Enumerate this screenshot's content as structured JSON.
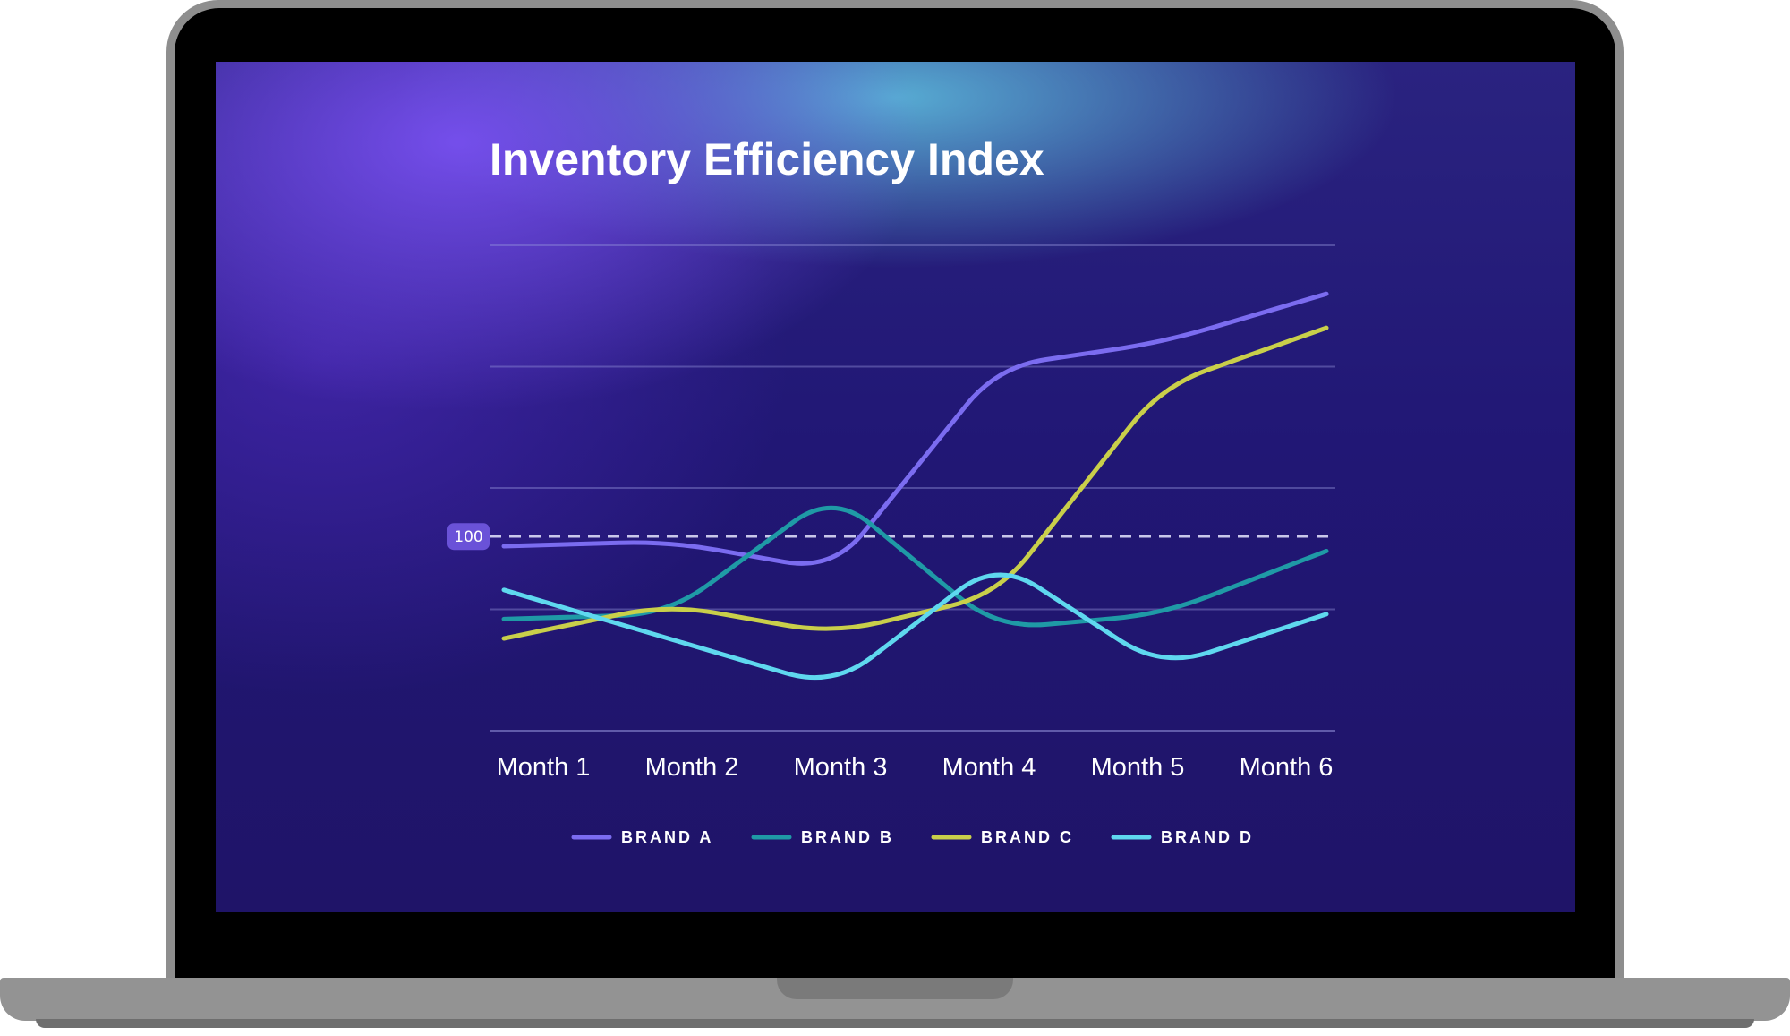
{
  "chart_data": {
    "type": "line",
    "title": "Inventory Efficiency Index",
    "categories": [
      "Month 1",
      "Month 2",
      "Month 3",
      "Month 4",
      "Month 5",
      "Month 6"
    ],
    "ylim": [
      60,
      160
    ],
    "reference_line": {
      "value": 100,
      "label": "100",
      "style": "dashed"
    },
    "grid": true,
    "legend_position": "bottom-center",
    "series": [
      {
        "name": "BRAND A",
        "color": "#7b6cf0",
        "values": [
          98,
          99,
          93,
          135,
          140,
          150
        ]
      },
      {
        "name": "BRAND B",
        "color": "#1f9aa6",
        "values": [
          83,
          84,
          109,
          81,
          84,
          97
        ]
      },
      {
        "name": "BRAND C",
        "color": "#c9cf4a",
        "values": [
          79,
          86,
          80,
          88,
          131,
          143
        ]
      },
      {
        "name": "BRAND D",
        "color": "#5fd8ef",
        "values": [
          89,
          79,
          69,
          95,
          73,
          84
        ]
      }
    ]
  }
}
